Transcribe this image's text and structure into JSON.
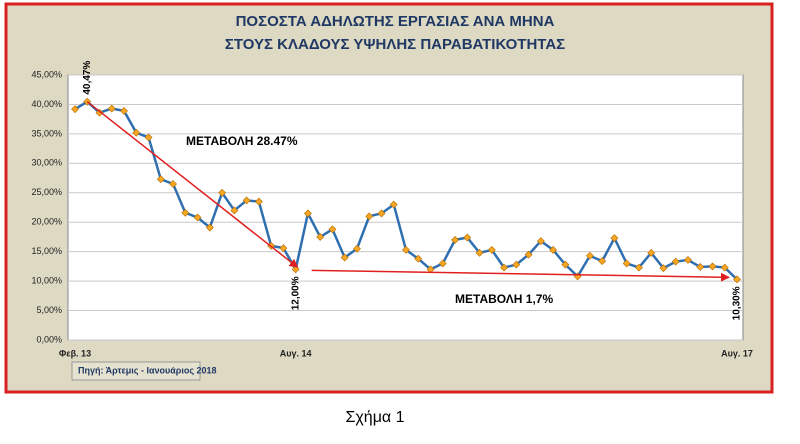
{
  "chart_data": {
    "type": "line",
    "title": [
      "ΠΟΣΟΣΤΑ ΑΔΗΛΩΤΗΣ ΕΡΓΑΣΙΑΣ ΑΝΑ ΜΗΝΑ",
      "ΣΤΟΥΣ ΚΛΑΔΟΥΣ ΥΨΗΛΗΣ ΠΑΡΑΒΑΤΙΚΟΤΗΤΑΣ"
    ],
    "categories": [
      "Φεβ. 13",
      null,
      null,
      null,
      null,
      null,
      null,
      null,
      null,
      null,
      null,
      null,
      null,
      null,
      null,
      null,
      null,
      null,
      "Αυγ. 14",
      null,
      null,
      null,
      null,
      null,
      null,
      null,
      null,
      null,
      null,
      null,
      null,
      null,
      null,
      null,
      null,
      null,
      null,
      null,
      null,
      null,
      null,
      null,
      null,
      null,
      null,
      null,
      null,
      null,
      null,
      null,
      null,
      null,
      null,
      null,
      "Αυγ. 17"
    ],
    "series": [
      {
        "color": "#2f6fb0",
        "marker_color": "#f5a623",
        "values": [
          39.2,
          40.47,
          38.6,
          39.3,
          38.9,
          35.2,
          34.4,
          27.3,
          26.5,
          21.6,
          20.8,
          19.1,
          25,
          22,
          23.7,
          23.5,
          16,
          15.6,
          12.0,
          21.5,
          17.5,
          18.8,
          14,
          15.5,
          21,
          21.5,
          23,
          15.3,
          13.8,
          12,
          13,
          17,
          17.4,
          14.8,
          15.3,
          12.3,
          12.8,
          14.5,
          16.8,
          15.3,
          12.8,
          10.8,
          14.3,
          13.4,
          17.3,
          13,
          12.3,
          14.8,
          12.2,
          13.3,
          13.6,
          12.4,
          12.5,
          12.3,
          10.3
        ],
        "value_labels": [
          null,
          "40,47%",
          null,
          null,
          null,
          null,
          null,
          null,
          null,
          null,
          null,
          null,
          null,
          null,
          null,
          null,
          null,
          null,
          "12,00%",
          null,
          null,
          null,
          null,
          null,
          null,
          null,
          null,
          null,
          null,
          null,
          null,
          null,
          null,
          null,
          null,
          null,
          null,
          null,
          null,
          null,
          null,
          null,
          null,
          null,
          null,
          null,
          null,
          null,
          null,
          null,
          null,
          null,
          null,
          null,
          "10,30%"
        ]
      }
    ],
    "ylim": [
      0,
      45
    ],
    "yticks": [
      {
        "value": 0,
        "label": "0,00%"
      },
      {
        "value": 5,
        "label": "5,00%"
      },
      {
        "value": 10,
        "label": "10,00%"
      },
      {
        "value": 15,
        "label": "15,00%"
      },
      {
        "value": 20,
        "label": "20,00%"
      },
      {
        "value": 25,
        "label": "25,00%"
      },
      {
        "value": 30,
        "label": "30,00%"
      },
      {
        "value": 35,
        "label": "35,00%"
      },
      {
        "value": 40,
        "label": "40,00%"
      },
      {
        "value": 45,
        "label": "45,00%"
      }
    ],
    "grid": true,
    "annotations": [
      "ΜΕΤΑΒΟΛΗ  28.47%",
      "ΜΕΤΑΒΟΛΗ 1,7%"
    ],
    "source": "Πηγή:  Άρτεμις -  Ιανουάριος 2018",
    "caption": "Σχήμα 1"
  }
}
